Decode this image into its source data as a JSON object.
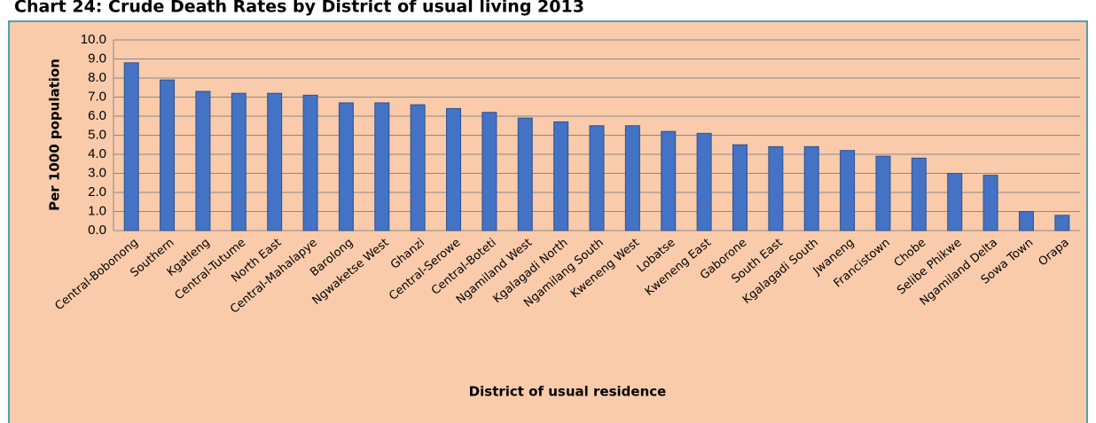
{
  "chart_data": {
    "type": "bar",
    "title": "Chart 24: Crude Death Rates by District of usual living 2013",
    "x_label": "District of usual residence",
    "y_label": "Per 1000 population",
    "categories": [
      "Central-Bobonong",
      "Southern",
      "Kgatleng",
      "Central-Tutume",
      "North East",
      "Central-Mahalapye",
      "Barolong",
      "Ngwaketse West",
      "Ghanzi",
      "Central-Serowe",
      "Central-Boteti",
      "Ngamiland West",
      "Kgalagadi North",
      "Ngamilang South",
      "Kweneng West",
      "Lobatse",
      "Kweneng East",
      "Gaborone",
      "South East",
      "Kgalagadi South",
      "Jwaneng",
      "Francistown",
      "Chobe",
      "Selibe Phikwe",
      "Ngamiland Delta",
      "Sowa Town",
      "Orapa"
    ],
    "values": [
      8.8,
      7.9,
      7.3,
      7.2,
      7.2,
      7.1,
      6.7,
      6.7,
      6.6,
      6.4,
      6.2,
      5.9,
      5.7,
      5.5,
      5.5,
      5.2,
      5.1,
      4.5,
      4.4,
      4.4,
      4.2,
      3.9,
      3.8,
      3.0,
      2.9,
      1.0,
      0.8
    ],
    "color": "#4472c4",
    "ylim": [
      0,
      10
    ],
    "yticks": [
      {
        "value": 0,
        "label": "0.0"
      },
      {
        "value": 1,
        "label": "1.0"
      },
      {
        "value": 2,
        "label": "2.0"
      },
      {
        "value": 3,
        "label": "3.0"
      },
      {
        "value": 4,
        "label": "4.0"
      },
      {
        "value": 5,
        "label": "5.0"
      },
      {
        "value": 6,
        "label": "6.0"
      },
      {
        "value": 7,
        "label": "7.0"
      },
      {
        "value": 8,
        "label": "8.0"
      },
      {
        "value": 9,
        "label": "9.0"
      },
      {
        "value": 10,
        "label": "10.0"
      }
    ],
    "grid": true
  }
}
